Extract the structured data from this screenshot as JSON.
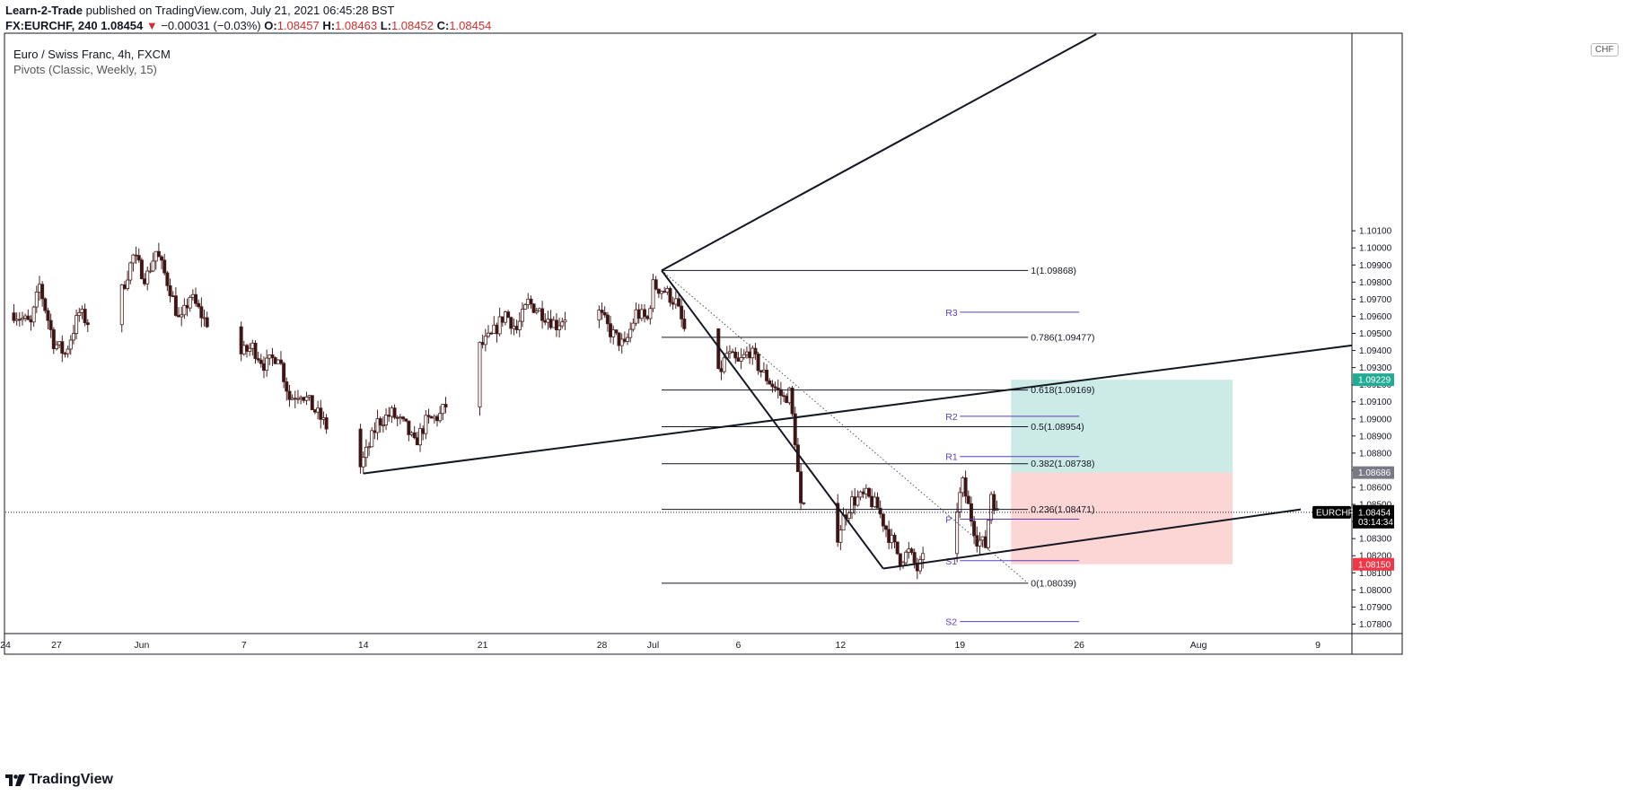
{
  "header": {
    "author": "Learn-2-Trade",
    "published_text": "published on TradingView.com, July 21, 2021 06:45:28 BST",
    "symbol": "FX:EURCHF, 240",
    "last": "1.08454",
    "change_arrow": "▼",
    "change": "−0.00031 (−0.03%)",
    "o_label": "O:",
    "o": "1.08457",
    "h_label": "H:",
    "h": "1.08463",
    "l_label": "L:",
    "l": "1.08452",
    "c_label": "C:",
    "c": "1.08454"
  },
  "legend": {
    "title": "Euro / Swiss Franc, 4h, FXCM",
    "study": "Pivots (Classic, Weekly, 15)"
  },
  "currency_badge": "CHF",
  "brand": "TradingView",
  "colors": {
    "candle_up": "#ffffff",
    "candle_down": "#3b1414",
    "wick": "#4a2020",
    "fib": "#131722",
    "pivot": "#5b3fbf",
    "profit_zone": "#cdebe6",
    "loss_zone": "#fcd5d5",
    "tag_target": "#22ab94",
    "tag_entry": "#787b86",
    "tag_stop": "#f23645",
    "tag_last": "#000000"
  },
  "chart_data": {
    "type": "candlestick",
    "title": "Euro / Swiss Franc, 4h, FXCM",
    "symbol_tag": "EURCHF",
    "countdown": "03:14:34",
    "last_price": 1.08454,
    "ylim": [
      1.0775,
      1.1125
    ],
    "y_ticks": [
      "1.07800",
      "1.07900",
      "1.08000",
      "1.08100",
      "1.08200",
      "1.08300",
      "1.08400",
      "1.08500",
      "1.08600",
      "1.08700",
      "1.08800",
      "1.08900",
      "1.09000",
      "1.09100",
      "1.09200",
      "1.09300",
      "1.09400",
      "1.09500",
      "1.09600",
      "1.09700",
      "1.09800",
      "1.09900",
      "1.10000",
      "1.10100"
    ],
    "x_start": "2021-05-24",
    "x_end": "2021-08-11",
    "x_ticks": [
      {
        "date": "2021-05-24",
        "label": "24"
      },
      {
        "date": "2021-05-27",
        "label": "27"
      },
      {
        "date": "2021-06-01",
        "label": "Jun"
      },
      {
        "date": "2021-06-07",
        "label": "7"
      },
      {
        "date": "2021-06-14",
        "label": "14"
      },
      {
        "date": "2021-06-21",
        "label": "21"
      },
      {
        "date": "2021-06-28",
        "label": "28"
      },
      {
        "date": "2021-07-01",
        "label": "Jul"
      },
      {
        "date": "2021-07-06",
        "label": "6"
      },
      {
        "date": "2021-07-12",
        "label": "12"
      },
      {
        "date": "2021-07-19",
        "label": "19"
      },
      {
        "date": "2021-07-26",
        "label": "26"
      },
      {
        "date": "2021-08-02",
        "label": "Aug"
      },
      {
        "date": "2021-08-09",
        "label": "9"
      }
    ],
    "candles_start": "2021-05-24T12:00",
    "candles_end": "2021-07-21T04:00",
    "close_path": [
      [
        "2021-05-24T12:00",
        1.0962
      ],
      [
        "2021-05-25T12:00",
        1.0955
      ],
      [
        "2021-05-26T00:00",
        1.0978
      ],
      [
        "2021-05-26T20:00",
        1.0945
      ],
      [
        "2021-05-27T12:00",
        1.0938
      ],
      [
        "2021-05-28T08:00",
        1.0962
      ],
      [
        "2021-05-29T20:00",
        1.0946
      ],
      [
        "2021-05-30T20:00",
        1.0975
      ],
      [
        "2021-05-31T12:00",
        1.0995
      ],
      [
        "2021-06-01T06:00",
        1.0982
      ],
      [
        "2021-06-01T20:00",
        1.0998
      ],
      [
        "2021-06-02T16:00",
        1.0976
      ],
      [
        "2021-06-03T06:00",
        1.0955
      ],
      [
        "2021-06-03T20:00",
        1.0972
      ],
      [
        "2021-06-04T16:00",
        1.0958
      ],
      [
        "2021-06-05T20:00",
        1.0948
      ],
      [
        "2021-06-06T20:00",
        1.0938
      ],
      [
        "2021-06-07T12:00",
        1.0942
      ],
      [
        "2021-06-08T06:00",
        1.0931
      ],
      [
        "2021-06-09T00:00",
        1.0938
      ],
      [
        "2021-06-09T16:00",
        1.0912
      ],
      [
        "2021-06-10T08:00",
        1.0916
      ],
      [
        "2021-06-11T00:00",
        1.0907
      ],
      [
        "2021-06-11T16:00",
        1.0898
      ],
      [
        "2021-06-12T20:00",
        1.088
      ],
      [
        "2021-06-13T20:00",
        1.0872
      ],
      [
        "2021-06-14T06:00",
        1.0882
      ],
      [
        "2021-06-14T20:00",
        1.0898
      ],
      [
        "2021-06-15T16:00",
        1.0903
      ],
      [
        "2021-06-16T12:00",
        1.0895
      ],
      [
        "2021-06-17T00:00",
        1.0885
      ],
      [
        "2021-06-17T16:00",
        1.0898
      ],
      [
        "2021-06-18T12:00",
        1.0902
      ],
      [
        "2021-06-19T20:00",
        1.0925
      ],
      [
        "2021-06-20T20:00",
        1.0942
      ],
      [
        "2021-06-21T12:00",
        1.0948
      ],
      [
        "2021-06-22T08:00",
        1.0962
      ],
      [
        "2021-06-23T00:00",
        1.0952
      ],
      [
        "2021-06-23T16:00",
        1.0968
      ],
      [
        "2021-06-24T12:00",
        1.0962
      ],
      [
        "2021-06-25T08:00",
        1.0955
      ],
      [
        "2021-06-26T20:00",
        1.097
      ],
      [
        "2021-06-27T20:00",
        1.0962
      ],
      [
        "2021-06-28T12:00",
        1.0951
      ],
      [
        "2021-06-29T08:00",
        1.0942
      ],
      [
        "2021-06-30T00:00",
        1.0962
      ],
      [
        "2021-06-30T16:00",
        1.0958
      ],
      [
        "2021-07-01T00:00",
        1.0978
      ],
      [
        "2021-07-01T16:00",
        1.0975
      ],
      [
        "2021-07-02T08:00",
        1.0968
      ],
      [
        "2021-07-02T20:00",
        1.0952
      ],
      [
        "2021-07-03T20:00",
        1.0938
      ],
      [
        "2021-07-04T20:00",
        1.0925
      ],
      [
        "2021-07-05T08:00",
        1.0938
      ],
      [
        "2021-07-06T00:00",
        1.0932
      ],
      [
        "2021-07-06T16:00",
        1.094
      ],
      [
        "2021-07-07T08:00",
        1.0928
      ],
      [
        "2021-07-08T00:00",
        1.092
      ],
      [
        "2021-07-08T16:00",
        1.0912
      ],
      [
        "2021-07-09T00:00",
        1.0915
      ],
      [
        "2021-07-09T08:00",
        1.0888
      ],
      [
        "2021-07-09T16:00",
        1.0848
      ],
      [
        "2021-07-10T20:00",
        1.0838
      ],
      [
        "2021-07-11T20:00",
        1.0832
      ],
      [
        "2021-07-12T04:00",
        1.0842
      ],
      [
        "2021-07-12T16:00",
        1.0852
      ],
      [
        "2021-07-13T12:00",
        1.0855
      ],
      [
        "2021-07-14T04:00",
        1.0848
      ],
      [
        "2021-07-14T20:00",
        1.0832
      ],
      [
        "2021-07-15T12:00",
        1.0818
      ],
      [
        "2021-07-16T00:00",
        1.0822
      ],
      [
        "2021-07-16T12:00",
        1.0812
      ],
      [
        "2021-07-17T20:00",
        1.0832
      ],
      [
        "2021-07-18T20:00",
        1.0848
      ],
      [
        "2021-07-19T04:00",
        1.0862
      ],
      [
        "2021-07-19T16:00",
        1.0842
      ],
      [
        "2021-07-20T00:00",
        1.083
      ],
      [
        "2021-07-20T12:00",
        1.0826
      ],
      [
        "2021-07-20T20:00",
        1.0857
      ],
      [
        "2021-07-21T04:00",
        1.0845
      ]
    ],
    "trendlines": [
      {
        "name": "upper-channel",
        "from": [
          "2021-07-01T12:00",
          1.09868
        ],
        "to": [
          "2021-07-27T00:00",
          1.1125
        ]
      },
      {
        "name": "lower-channel",
        "from": [
          "2021-06-14T00:00",
          1.08681
        ],
        "to": [
          "2021-08-11T00:00",
          1.0943
        ]
      },
      {
        "name": "support",
        "from": [
          "2021-07-14T12:00",
          1.08125
        ],
        "to": [
          "2021-08-08T00:00",
          1.08471
        ]
      },
      {
        "name": "swing-down",
        "from": [
          "2021-07-01T12:00",
          1.09868
        ],
        "to": [
          "2021-07-14T12:00",
          1.08125
        ]
      }
    ],
    "dotted_line": {
      "from": [
        "2021-07-01T12:00",
        1.09868
      ],
      "to": [
        "2021-07-23T00:00",
        1.08039
      ]
    },
    "fib": {
      "from": "2021-07-01T12:00",
      "to": "2021-07-23T00:00",
      "levels": [
        {
          "label": "1(1.09868)",
          "price": 1.09868
        },
        {
          "label": "0.786(1.09477)",
          "price": 1.09477
        },
        {
          "label": "0.618(1.09169)",
          "price": 1.09169
        },
        {
          "label": "0.5(1.08954)",
          "price": 1.08954
        },
        {
          "label": "0.382(1.08738)",
          "price": 1.08738
        },
        {
          "label": "0.236(1.08471)",
          "price": 1.08471
        },
        {
          "label": "0(1.08039)",
          "price": 1.08039
        }
      ]
    },
    "pivots": {
      "from": "2021-07-19T00:00",
      "to": "2021-07-26T00:00",
      "levels": [
        {
          "label": "R3",
          "price": 1.09624
        },
        {
          "label": "R2",
          "price": 1.09015
        },
        {
          "label": "R1",
          "price": 1.0878
        },
        {
          "label": "P",
          "price": 1.08414
        },
        {
          "label": "S1",
          "price": 1.08171
        },
        {
          "label": "S2",
          "price": 1.07815
        }
      ]
    },
    "position": {
      "from": "2021-07-22T00:00",
      "to": "2021-08-04T00:00",
      "entry": 1.08686,
      "target": 1.09229,
      "stop": 1.0815
    },
    "price_tags": [
      {
        "kind": "target",
        "text": "1.09229",
        "price": 1.09229
      },
      {
        "kind": "entry",
        "text": "1.08686",
        "price": 1.08686
      },
      {
        "kind": "stop",
        "text": "1.08150",
        "price": 1.0815
      }
    ]
  }
}
